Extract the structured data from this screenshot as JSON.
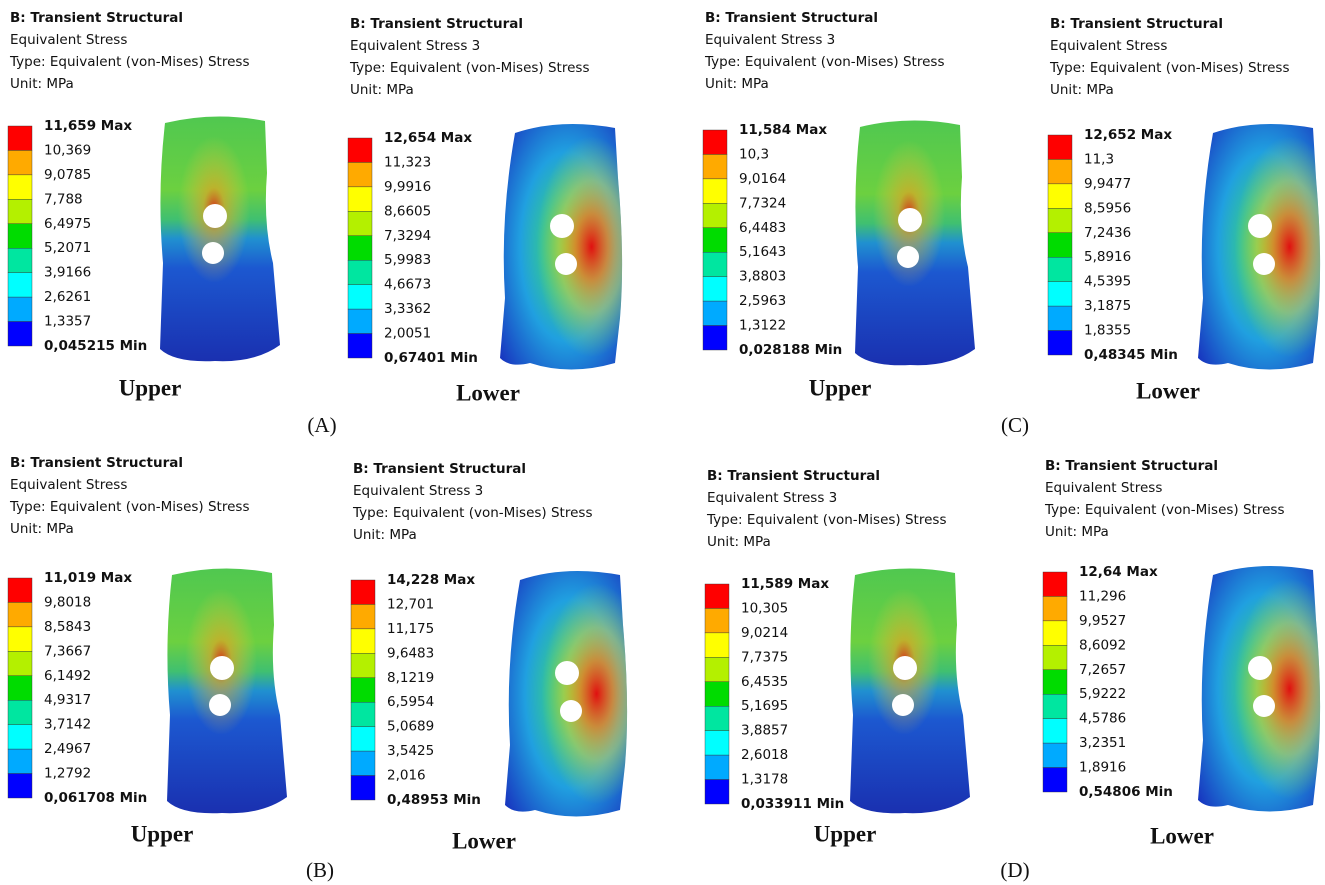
{
  "groups": [
    {
      "label": "(A)",
      "panels": [
        {
          "title": "B: Transient Structural",
          "result": "Equivalent Stress",
          "type": "Type: Equivalent (von-Mises) Stress",
          "unit": "Unit: MPa",
          "legend": [
            "11,659 Max",
            "10,369",
            "9,0785",
            "7,788",
            "6,4975",
            "5,2071",
            "3,9166",
            "2,6261",
            "1,3357",
            "0,045215 Min"
          ],
          "caption": "Upper"
        },
        {
          "title": "B: Transient Structural",
          "result": "Equivalent Stress 3",
          "type": "Type: Equivalent (von-Mises) Stress",
          "unit": "Unit: MPa",
          "legend": [
            "12,654 Max",
            "11,323",
            "9,9916",
            "8,6605",
            "7,3294",
            "5,9983",
            "4,6673",
            "3,3362",
            "2,0051",
            "0,67401 Min"
          ],
          "caption": "Lower"
        }
      ]
    },
    {
      "label": "(B)",
      "panels": [
        {
          "title": "B: Transient Structural",
          "result": "Equivalent Stress",
          "type": "Type: Equivalent (von-Mises) Stress",
          "unit": "Unit: MPa",
          "legend": [
            "11,019 Max",
            "9,8018",
            "8,5843",
            "7,3667",
            "6,1492",
            "4,9317",
            "3,7142",
            "2,4967",
            "1,2792",
            "0,061708 Min"
          ],
          "caption": "Upper"
        },
        {
          "title": "B: Transient Structural",
          "result": "Equivalent Stress 3",
          "type": "Type: Equivalent (von-Mises) Stress",
          "unit": "Unit: MPa",
          "legend": [
            "14,228 Max",
            "12,701",
            "11,175",
            "9,6483",
            "8,1219",
            "6,5954",
            "5,0689",
            "3,5425",
            "2,016",
            "0,48953 Min"
          ],
          "caption": "Lower"
        }
      ]
    },
    {
      "label": "(C)",
      "panels": [
        {
          "title": "B: Transient Structural",
          "result": "Equivalent Stress 3",
          "type": "Type: Equivalent (von-Mises) Stress",
          "unit": "Unit: MPa",
          "legend": [
            "11,584 Max",
            "10,3",
            "9,0164",
            "7,7324",
            "6,4483",
            "5,1643",
            "3,8803",
            "2,5963",
            "1,3122",
            "0,028188 Min"
          ],
          "caption": "Upper"
        },
        {
          "title": "B: Transient Structural",
          "result": "Equivalent Stress",
          "type": "Type: Equivalent (von-Mises) Stress",
          "unit": "Unit: MPa",
          "legend": [
            "12,652 Max",
            "11,3",
            "9,9477",
            "8,5956",
            "7,2436",
            "5,8916",
            "4,5395",
            "3,1875",
            "1,8355",
            "0,48345 Min"
          ],
          "caption": "Lower"
        }
      ]
    },
    {
      "label": "(D)",
      "panels": [
        {
          "title": "B: Transient Structural",
          "result": "Equivalent Stress 3",
          "type": "Type: Equivalent (von-Mises) Stress",
          "unit": "Unit: MPa",
          "legend": [
            "11,589 Max",
            "10,305",
            "9,0214",
            "7,7375",
            "6,4535",
            "5,1695",
            "3,8857",
            "2,6018",
            "1,3178",
            "0,033911 Min"
          ],
          "caption": "Upper"
        },
        {
          "title": "B: Transient Structural",
          "result": "Equivalent Stress",
          "type": "Type: Equivalent (von-Mises) Stress",
          "unit": "Unit: MPa",
          "legend": [
            "12,64 Max",
            "11,296",
            "9,9527",
            "8,6092",
            "7,2657",
            "5,9222",
            "4,5786",
            "3,2351",
            "1,8916",
            "0,54806 Min"
          ],
          "caption": "Lower"
        }
      ]
    }
  ]
}
